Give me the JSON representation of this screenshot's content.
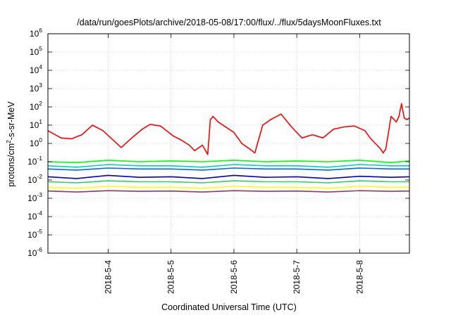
{
  "chart_data": {
    "type": "line",
    "title": "/data/run/goesPlots/archive/2018-05-08/17:00/flux/../flux/5daysMoonFluxes.txt",
    "xlabel": "Coordinated Universal Time (UTC)",
    "ylabel": "protons/cm²-s-sr-MeV",
    "ylabel_parts": {
      "a": "protons/cm",
      "sup": "2",
      "b": "-s-sr-MeV"
    },
    "x_axis": {
      "unit": "days",
      "range": [
        "2018-05-03 01:00",
        "2018-05-08 19:00"
      ],
      "ticks": [
        "2018-5-4",
        "2018-5-5",
        "2018-5-6",
        "2018-5-7",
        "2018-5-8"
      ]
    },
    "y_axis": {
      "scale": "log",
      "range": [
        1e-06,
        1000000.0
      ],
      "ticks": [
        {
          "base": "10",
          "exp": "6"
        },
        {
          "base": "10",
          "exp": "5"
        },
        {
          "base": "10",
          "exp": "4"
        },
        {
          "base": "10",
          "exp": "3"
        },
        {
          "base": "10",
          "exp": "2"
        },
        {
          "base": "10",
          "exp": "1"
        },
        {
          "base": "10",
          "exp": "0"
        },
        {
          "base": "10",
          "exp": "-1"
        },
        {
          "base": "10",
          "exp": "-2"
        },
        {
          "base": "10",
          "exp": "-3"
        },
        {
          "base": "10",
          "exp": "-4"
        },
        {
          "base": "10",
          "exp": "-5"
        },
        {
          "base": "10",
          "exp": "-6"
        }
      ]
    },
    "grid": true,
    "legend": "none",
    "series": [
      {
        "color": "#ff0000",
        "x": [
          "2018-05-03 01:00",
          "2018-05-03 03:00",
          "2018-05-03 06:00",
          "2018-05-03 10:00",
          "2018-05-03 14:00",
          "2018-05-03 18:00",
          "2018-05-03 22:00",
          "2018-05-04 01:00",
          "2018-05-04 05:00",
          "2018-05-04 09:00",
          "2018-05-04 13:00",
          "2018-05-04 16:00",
          "2018-05-04 20:00",
          "2018-05-05 01:00",
          "2018-05-05 04:00",
          "2018-05-05 07:00",
          "2018-05-05 09:00",
          "2018-05-05 12:00",
          "2018-05-05 14:00",
          "2018-05-05 15:00",
          "2018-05-05 16:00",
          "2018-05-05 18:00",
          "2018-05-06 00:00",
          "2018-05-06 03:00",
          "2018-05-06 06:00",
          "2018-05-06 08:00",
          "2018-05-06 09:00",
          "2018-05-06 11:00",
          "2018-05-06 14:00",
          "2018-05-06 18:00",
          "2018-05-06 22:00",
          "2018-05-07 02:00",
          "2018-05-07 06:00",
          "2018-05-07 10:00",
          "2018-05-07 14:00",
          "2018-05-07 18:00",
          "2018-05-07 22:00",
          "2018-05-08 02:00",
          "2018-05-08 04:00",
          "2018-05-08 06:00",
          "2018-05-08 08:00",
          "2018-05-08 09:00",
          "2018-05-08 10:00",
          "2018-05-08 12:00",
          "2018-05-08 14:00",
          "2018-05-08 15:00",
          "2018-05-08 16:00",
          "2018-05-08 17:00",
          "2018-05-08 18:00",
          "2018-05-08 19:00"
        ],
        "y": [
          5,
          3.5,
          2,
          1.8,
          3,
          10,
          5,
          2,
          0.6,
          2,
          6,
          11,
          9,
          2.5,
          1.5,
          0.8,
          0.4,
          0.8,
          0.25,
          20,
          30,
          15,
          4,
          1,
          0.5,
          0.3,
          1,
          10,
          20,
          40,
          8,
          2,
          3,
          2,
          6,
          8,
          9,
          5,
          2,
          1,
          0.5,
          0.3,
          0.5,
          30,
          15,
          30,
          150,
          25,
          20,
          25
        ]
      },
      {
        "color": "#00ff00",
        "x": [
          "2018-05-03 01:00",
          "2018-05-03 12:00",
          "2018-05-04 00:00",
          "2018-05-04 12:00",
          "2018-05-05 00:00",
          "2018-05-05 12:00",
          "2018-05-06 00:00",
          "2018-05-06 12:00",
          "2018-05-07 00:00",
          "2018-05-07 12:00",
          "2018-05-08 00:00",
          "2018-05-08 12:00",
          "2018-05-08 19:00"
        ],
        "y": [
          0.1,
          0.09,
          0.12,
          0.1,
          0.11,
          0.1,
          0.12,
          0.1,
          0.11,
          0.1,
          0.12,
          0.09,
          0.11
        ]
      },
      {
        "color": "#00cccc",
        "x": [
          "2018-05-03 01:00",
          "2018-05-03 12:00",
          "2018-05-04 00:00",
          "2018-05-04 12:00",
          "2018-05-05 00:00",
          "2018-05-05 12:00",
          "2018-05-06 00:00",
          "2018-05-06 12:00",
          "2018-05-07 00:00",
          "2018-05-07 12:00",
          "2018-05-08 00:00",
          "2018-05-08 12:00",
          "2018-05-08 19:00"
        ],
        "y": [
          0.06,
          0.05,
          0.07,
          0.06,
          0.06,
          0.05,
          0.07,
          0.06,
          0.06,
          0.05,
          0.07,
          0.06,
          0.06
        ]
      },
      {
        "color": "#0066ff",
        "x": [
          "2018-05-03 01:00",
          "2018-05-03 12:00",
          "2018-05-04 00:00",
          "2018-05-04 12:00",
          "2018-05-05 00:00",
          "2018-05-05 12:00",
          "2018-05-06 00:00",
          "2018-05-06 12:00",
          "2018-05-07 00:00",
          "2018-05-07 12:00",
          "2018-05-08 00:00",
          "2018-05-08 12:00",
          "2018-05-08 19:00"
        ],
        "y": [
          0.04,
          0.035,
          0.045,
          0.04,
          0.04,
          0.035,
          0.045,
          0.04,
          0.04,
          0.035,
          0.045,
          0.04,
          0.04
        ]
      },
      {
        "color": "#0000cc",
        "x": [
          "2018-05-03 01:00",
          "2018-05-03 12:00",
          "2018-05-04 00:00",
          "2018-05-04 12:00",
          "2018-05-05 00:00",
          "2018-05-05 12:00",
          "2018-05-06 00:00",
          "2018-05-06 12:00",
          "2018-05-07 00:00",
          "2018-05-07 12:00",
          "2018-05-08 00:00",
          "2018-05-08 12:00",
          "2018-05-08 19:00"
        ],
        "y": [
          0.015,
          0.012,
          0.018,
          0.014,
          0.015,
          0.012,
          0.018,
          0.014,
          0.015,
          0.012,
          0.016,
          0.014,
          0.015
        ]
      },
      {
        "color": "#33cc66",
        "x": [
          "2018-05-03 01:00",
          "2018-05-03 12:00",
          "2018-05-04 00:00",
          "2018-05-04 12:00",
          "2018-05-05 00:00",
          "2018-05-05 12:00",
          "2018-05-06 00:00",
          "2018-05-06 12:00",
          "2018-05-07 00:00",
          "2018-05-07 12:00",
          "2018-05-08 00:00",
          "2018-05-08 12:00",
          "2018-05-08 19:00"
        ],
        "y": [
          0.008,
          0.007,
          0.009,
          0.008,
          0.008,
          0.007,
          0.009,
          0.008,
          0.008,
          0.007,
          0.009,
          0.008,
          0.008
        ]
      },
      {
        "color": "#ffff00",
        "x": [
          "2018-05-03 01:00",
          "2018-05-03 12:00",
          "2018-05-04 00:00",
          "2018-05-04 12:00",
          "2018-05-05 00:00",
          "2018-05-05 12:00",
          "2018-05-06 00:00",
          "2018-05-06 12:00",
          "2018-05-07 00:00",
          "2018-05-07 12:00",
          "2018-05-08 00:00",
          "2018-05-08 12:00",
          "2018-05-08 19:00"
        ],
        "y": [
          0.004,
          0.0035,
          0.0045,
          0.004,
          0.004,
          0.0035,
          0.0045,
          0.004,
          0.004,
          0.0035,
          0.0045,
          0.004,
          0.004
        ]
      },
      {
        "color": "#993366",
        "x": [
          "2018-05-03 01:00",
          "2018-05-03 12:00",
          "2018-05-04 00:00",
          "2018-05-04 12:00",
          "2018-05-05 00:00",
          "2018-05-05 12:00",
          "2018-05-06 00:00",
          "2018-05-06 12:00",
          "2018-05-07 00:00",
          "2018-05-07 12:00",
          "2018-05-08 00:00",
          "2018-05-08 12:00",
          "2018-05-08 19:00"
        ],
        "y": [
          0.0025,
          0.0022,
          0.0026,
          0.0024,
          0.0025,
          0.0022,
          0.0026,
          0.0024,
          0.0025,
          0.0022,
          0.0026,
          0.0024,
          0.0025
        ]
      }
    ]
  }
}
